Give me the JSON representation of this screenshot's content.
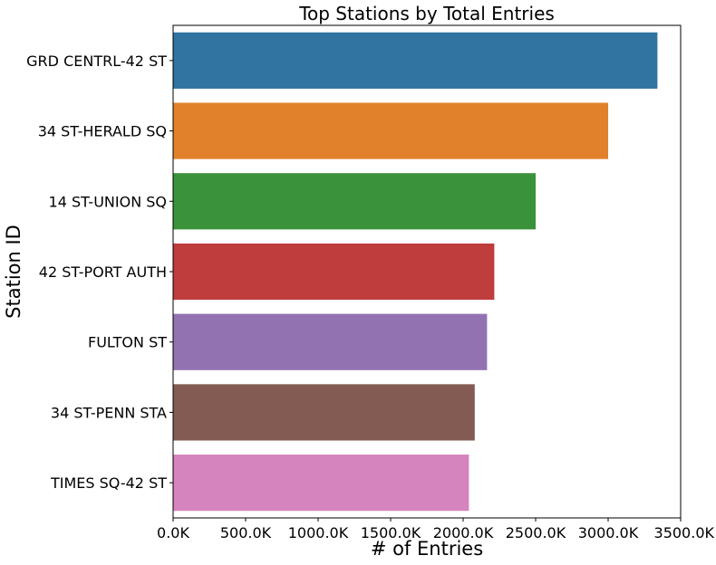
{
  "chart_data": {
    "type": "bar",
    "orientation": "horizontal",
    "title": "Top Stations by Total Entries",
    "xlabel": "# of Entries",
    "ylabel": "Station ID",
    "categories": [
      "GRD CENTRL-42 ST",
      "34 ST-HERALD SQ",
      "14 ST-UNION SQ",
      "42 ST-PORT AUTH",
      "FULTON ST",
      "34 ST-PENN STA",
      "TIMES SQ-42 ST"
    ],
    "values": [
      3340000,
      3000000,
      2500000,
      2215000,
      2165000,
      2080000,
      2040000
    ],
    "colors": [
      "#3274a1",
      "#e1812c",
      "#3a923a",
      "#c03d3e",
      "#9372b2",
      "#845b53",
      "#d684bd"
    ],
    "xlim": [
      0,
      3500000
    ],
    "xticks": [
      0,
      500000,
      1000000,
      1500000,
      2000000,
      2500000,
      3000000,
      3500000
    ],
    "xtick_labels": [
      "0.0K",
      "500.0K",
      "1000.0K",
      "1500.0K",
      "2000.0K",
      "2500.0K",
      "3000.0K",
      "3500.0K"
    ],
    "grid": false,
    "legend": "none"
  }
}
